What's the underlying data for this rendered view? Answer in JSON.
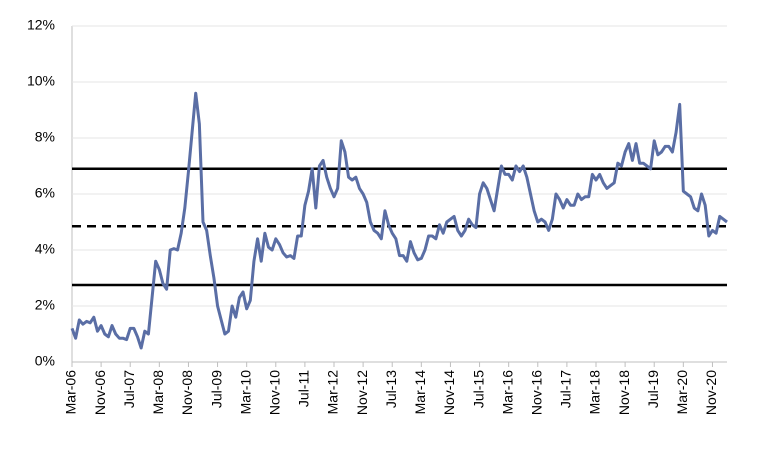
{
  "chart_data": {
    "type": "line",
    "categories": [
      "Mar-06",
      null,
      null,
      null,
      null,
      null,
      null,
      null,
      "Nov-06",
      null,
      null,
      null,
      null,
      null,
      null,
      null,
      "Jul-07",
      null,
      null,
      null,
      null,
      null,
      null,
      null,
      "Mar-08",
      null,
      null,
      null,
      null,
      null,
      null,
      null,
      "Nov-08",
      null,
      null,
      null,
      null,
      null,
      null,
      null,
      "Jul-09",
      null,
      null,
      null,
      null,
      null,
      null,
      null,
      "Mar-10",
      null,
      null,
      null,
      null,
      null,
      null,
      null,
      "Nov-10",
      null,
      null,
      null,
      null,
      null,
      null,
      null,
      "Jul-11",
      null,
      null,
      null,
      null,
      null,
      null,
      null,
      "Mar-12",
      null,
      null,
      null,
      null,
      null,
      null,
      null,
      "Nov-12",
      null,
      null,
      null,
      null,
      null,
      null,
      null,
      "Jul-13",
      null,
      null,
      null,
      null,
      null,
      null,
      null,
      "Mar-14",
      null,
      null,
      null,
      null,
      null,
      null,
      null,
      "Nov-14",
      null,
      null,
      null,
      null,
      null,
      null,
      null,
      "Jul-15",
      null,
      null,
      null,
      null,
      null,
      null,
      null,
      "Mar-16",
      null,
      null,
      null,
      null,
      null,
      null,
      null,
      "Nov-16",
      null,
      null,
      null,
      null,
      null,
      null,
      null,
      "Jul-17",
      null,
      null,
      null,
      null,
      null,
      null,
      null,
      "Mar-18",
      null,
      null,
      null,
      null,
      null,
      null,
      null,
      "Nov-18",
      null,
      null,
      null,
      null,
      null,
      null,
      null,
      "Jul-19",
      null,
      null,
      null,
      null,
      null,
      null,
      null,
      "Mar-20",
      null,
      null,
      null,
      null,
      null,
      null,
      null,
      "Nov-20",
      null,
      null,
      null,
      null
    ],
    "values": [
      1.2,
      0.85,
      1.5,
      1.35,
      1.45,
      1.4,
      1.6,
      1.1,
      1.3,
      1.0,
      0.9,
      1.3,
      1.0,
      0.85,
      0.85,
      0.8,
      1.2,
      1.2,
      0.9,
      0.5,
      1.1,
      1.0,
      2.3,
      3.6,
      3.3,
      2.8,
      2.6,
      4.0,
      4.05,
      4.0,
      4.6,
      5.5,
      6.8,
      8.2,
      9.6,
      8.5,
      5.0,
      4.7,
      3.8,
      3.0,
      2.0,
      1.5,
      1.0,
      1.1,
      2.0,
      1.6,
      2.3,
      2.5,
      1.9,
      2.2,
      3.6,
      4.4,
      3.6,
      4.6,
      4.1,
      4.0,
      4.4,
      4.2,
      3.9,
      3.75,
      3.8,
      3.7,
      4.5,
      4.5,
      5.6,
      6.1,
      6.9,
      5.5,
      7.0,
      7.2,
      6.6,
      6.2,
      5.9,
      6.2,
      7.9,
      7.5,
      6.6,
      6.5,
      6.6,
      6.2,
      6.0,
      5.7,
      5.0,
      4.7,
      4.6,
      4.4,
      5.4,
      4.9,
      4.6,
      4.4,
      3.8,
      3.8,
      3.6,
      4.3,
      3.9,
      3.65,
      3.7,
      4.0,
      4.5,
      4.5,
      4.4,
      4.9,
      4.6,
      5.0,
      5.1,
      5.2,
      4.7,
      4.5,
      4.7,
      5.1,
      4.9,
      4.8,
      6.0,
      6.4,
      6.2,
      5.8,
      5.4,
      6.2,
      7.0,
      6.7,
      6.7,
      6.5,
      7.0,
      6.8,
      7.0,
      6.6,
      6.0,
      5.4,
      5.0,
      5.1,
      5.0,
      4.7,
      5.1,
      6.0,
      5.8,
      5.5,
      5.8,
      5.6,
      5.6,
      6.0,
      5.8,
      5.9,
      5.9,
      6.7,
      6.5,
      6.7,
      6.4,
      6.2,
      6.3,
      6.4,
      7.1,
      7.0,
      7.5,
      7.8,
      7.2,
      7.8,
      7.1,
      7.1,
      7.0,
      6.9,
      7.9,
      7.4,
      7.5,
      7.7,
      7.7,
      7.5,
      8.2,
      9.2,
      6.1,
      6.0,
      5.9,
      5.5,
      5.4,
      6.0,
      5.6,
      4.5,
      4.7,
      4.6,
      5.2,
      5.1,
      5.0
    ],
    "color": "#5a6ea5",
    "reference_lines": [
      {
        "value": 6.9,
        "style": "solid"
      },
      {
        "value": 4.85,
        "style": "dashed"
      },
      {
        "value": 2.75,
        "style": "solid"
      }
    ],
    "ylim": [
      0,
      12
    ],
    "yticks": [
      {
        "value": 0,
        "label": "0%"
      },
      {
        "value": 2,
        "label": "2%"
      },
      {
        "value": 4,
        "label": "4%"
      },
      {
        "value": 6,
        "label": "6%"
      },
      {
        "value": 8,
        "label": "8%"
      },
      {
        "value": 10,
        "label": "10%"
      },
      {
        "value": 12,
        "label": "12%"
      }
    ],
    "grid": true
  }
}
